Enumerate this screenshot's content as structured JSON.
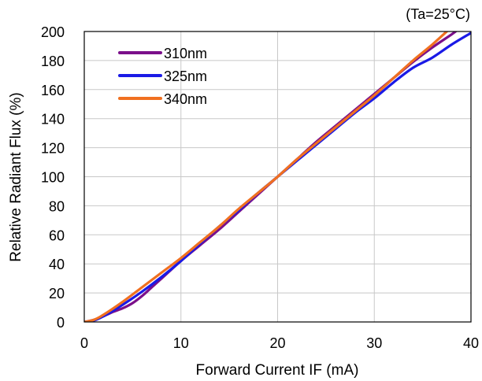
{
  "chart_data": {
    "type": "line",
    "annotation": "(Ta=25°C)",
    "xlabel": "Forward Current IF (mA)",
    "ylabel": "Relative Radiant Flux (%)",
    "xlim": [
      0,
      40
    ],
    "ylim": [
      0,
      200
    ],
    "xticks": [
      0,
      10,
      20,
      30,
      40
    ],
    "yticks": [
      0,
      20,
      40,
      60,
      80,
      100,
      120,
      140,
      160,
      180,
      200
    ],
    "grid": true,
    "legend_position": "top-left",
    "series": [
      {
        "name": "310nm",
        "color": "#7B0F8A",
        "x": [
          0,
          1,
          2,
          3,
          4,
          5,
          6,
          7,
          8,
          10,
          12,
          14,
          16,
          18,
          20,
          22,
          24,
          26,
          28,
          30,
          32,
          34,
          36,
          38,
          39,
          40
        ],
        "y": [
          0,
          1.5,
          4,
          7,
          9.5,
          13,
          18,
          24,
          30,
          42,
          53,
          64,
          76,
          88,
          100,
          112,
          124,
          135,
          146,
          157,
          168,
          179,
          189,
          198,
          203,
          207
        ]
      },
      {
        "name": "325nm",
        "color": "#1A1AE6",
        "x": [
          0,
          1,
          2,
          4,
          6,
          8,
          10,
          12,
          14,
          16,
          18,
          20,
          22,
          24,
          26,
          28,
          30,
          32,
          34,
          36,
          38,
          40
        ],
        "y": [
          0,
          1,
          4,
          12,
          21,
          31,
          42,
          54,
          66,
          77,
          89,
          100,
          111,
          122,
          133,
          144,
          154,
          165,
          175,
          182,
          191,
          199
        ]
      },
      {
        "name": "340nm",
        "color": "#F07020",
        "x": [
          0,
          1,
          2,
          4,
          6,
          8,
          10,
          12,
          14,
          16,
          18,
          20,
          22,
          24,
          26,
          28,
          30,
          32,
          34,
          36,
          38,
          40
        ],
        "y": [
          0,
          1.5,
          5,
          14,
          24,
          34,
          44,
          55,
          66,
          78,
          89,
          100,
          112,
          123,
          134,
          145,
          156,
          168,
          180,
          191,
          203,
          214
        ]
      }
    ]
  }
}
